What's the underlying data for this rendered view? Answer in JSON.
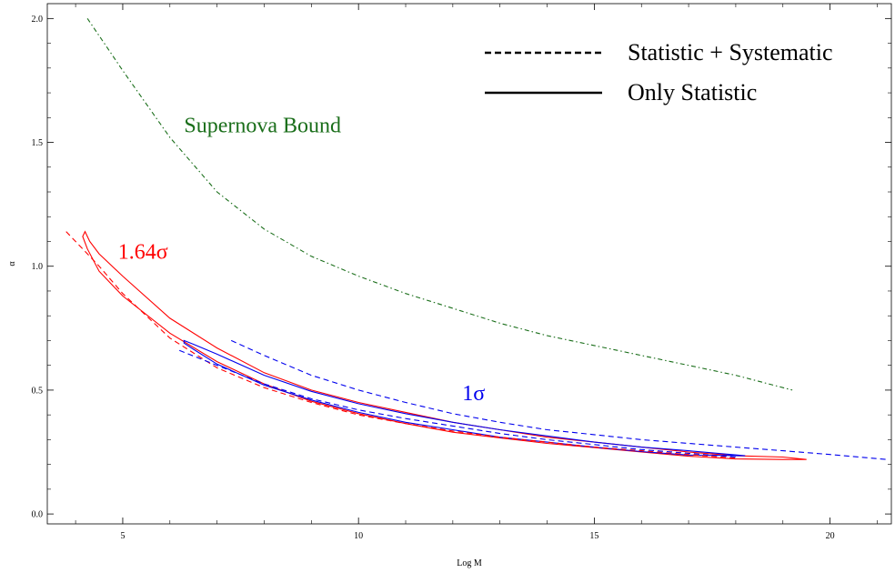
{
  "chart_data": {
    "type": "line",
    "xlabel": "Log M",
    "ylabel": "α",
    "xlim": [
      3.4,
      21.3
    ],
    "ylim": [
      -0.04,
      2.06
    ],
    "x_ticks": [
      5,
      10,
      15,
      20
    ],
    "x_tick_labels": [
      "5",
      "10",
      "15",
      "20"
    ],
    "y_ticks": [
      0.0,
      0.5,
      1.0,
      1.5,
      2.0
    ],
    "y_tick_labels": [
      "0.0",
      "0.5",
      "1.0",
      "1.5",
      "2.0"
    ],
    "grid": false,
    "legend": {
      "position": "top-right",
      "entries": [
        {
          "label": "Statistic + Systematic",
          "style": "dashed",
          "color": "#000000"
        },
        {
          "label": "Only Statistic",
          "style": "solid",
          "color": "#000000"
        }
      ]
    },
    "annotations": [
      {
        "text": "Supernova Bound",
        "x": 6.3,
        "y": 1.54,
        "color": "#1a6e1a"
      },
      {
        "text": "1.64σ",
        "x": 4.9,
        "y": 1.03,
        "color": "#ff0000"
      },
      {
        "text": "1σ",
        "x": 12.2,
        "y": 0.46,
        "color": "#0000ee"
      }
    ],
    "series": [
      {
        "style": "dashdot",
        "color": "#1a6e1a",
        "closed": false,
        "points": [
          [
            4.25,
            2.0
          ],
          [
            5.0,
            1.79
          ],
          [
            6.0,
            1.52
          ],
          [
            7.0,
            1.3
          ],
          [
            8.0,
            1.15
          ],
          [
            9.0,
            1.04
          ],
          [
            10.0,
            0.96
          ],
          [
            11.0,
            0.89
          ],
          [
            12.0,
            0.83
          ],
          [
            13.0,
            0.77
          ],
          [
            14.0,
            0.72
          ],
          [
            15.0,
            0.68
          ],
          [
            16.0,
            0.64
          ],
          [
            17.0,
            0.6
          ],
          [
            18.0,
            0.56
          ],
          [
            19.2,
            0.5
          ]
        ]
      },
      {
        "style": "solid",
        "color": "#ff0000",
        "closed": true,
        "points": [
          [
            4.2,
            1.14
          ],
          [
            4.3,
            1.1
          ],
          [
            4.5,
            1.05
          ],
          [
            5.0,
            0.96
          ],
          [
            6.0,
            0.79
          ],
          [
            7.0,
            0.67
          ],
          [
            8.0,
            0.57
          ],
          [
            9.0,
            0.5
          ],
          [
            10.0,
            0.45
          ],
          [
            11.0,
            0.41
          ],
          [
            12.0,
            0.37
          ],
          [
            13.0,
            0.34
          ],
          [
            14.0,
            0.31
          ],
          [
            15.0,
            0.29
          ],
          [
            16.0,
            0.27
          ],
          [
            17.0,
            0.25
          ],
          [
            18.0,
            0.235
          ],
          [
            19.0,
            0.23
          ],
          [
            19.5,
            0.22
          ],
          [
            19.0,
            0.22
          ],
          [
            18.0,
            0.222
          ],
          [
            17.0,
            0.233
          ],
          [
            16.0,
            0.25
          ],
          [
            15.0,
            0.268
          ],
          [
            14.0,
            0.285
          ],
          [
            13.0,
            0.307
          ],
          [
            12.0,
            0.33
          ],
          [
            11.0,
            0.365
          ],
          [
            10.0,
            0.405
          ],
          [
            9.0,
            0.455
          ],
          [
            8.0,
            0.525
          ],
          [
            7.0,
            0.615
          ],
          [
            6.0,
            0.73
          ],
          [
            5.0,
            0.88
          ],
          [
            4.5,
            0.98
          ],
          [
            4.25,
            1.07
          ],
          [
            4.15,
            1.12
          ]
        ]
      },
      {
        "style": "solid",
        "color": "#0000ee",
        "closed": true,
        "points": [
          [
            6.3,
            0.7
          ],
          [
            6.5,
            0.685
          ],
          [
            7.0,
            0.645
          ],
          [
            8.0,
            0.56
          ],
          [
            9.0,
            0.495
          ],
          [
            10.0,
            0.445
          ],
          [
            11.0,
            0.405
          ],
          [
            12.0,
            0.37
          ],
          [
            13.0,
            0.34
          ],
          [
            14.0,
            0.315
          ],
          [
            15.0,
            0.29
          ],
          [
            16.0,
            0.27
          ],
          [
            17.0,
            0.255
          ],
          [
            18.2,
            0.235
          ],
          [
            17.0,
            0.238
          ],
          [
            16.0,
            0.252
          ],
          [
            15.0,
            0.27
          ],
          [
            14.0,
            0.29
          ],
          [
            13.0,
            0.31
          ],
          [
            12.0,
            0.34
          ],
          [
            11.0,
            0.37
          ],
          [
            10.0,
            0.41
          ],
          [
            9.0,
            0.46
          ],
          [
            8.0,
            0.52
          ],
          [
            7.0,
            0.605
          ],
          [
            6.5,
            0.665
          ],
          [
            6.3,
            0.69
          ]
        ]
      },
      {
        "style": "dashed",
        "color": "#ff0000",
        "closed": false,
        "points": [
          [
            3.8,
            1.14
          ],
          [
            4.2,
            1.06
          ],
          [
            4.5,
            1.0
          ],
          [
            5.0,
            0.89
          ],
          [
            6.0,
            0.71
          ],
          [
            7.0,
            0.59
          ],
          [
            8.0,
            0.51
          ],
          [
            9.0,
            0.45
          ],
          [
            10.0,
            0.4
          ],
          [
            11.0,
            0.365
          ],
          [
            12.0,
            0.335
          ],
          [
            13.0,
            0.31
          ],
          [
            14.0,
            0.29
          ],
          [
            15.0,
            0.27
          ],
          [
            16.0,
            0.255
          ],
          [
            17.0,
            0.24
          ],
          [
            18.0,
            0.225
          ]
        ]
      },
      {
        "style": "dashed",
        "color": "#0000ee",
        "closed": false,
        "points": [
          [
            6.2,
            0.66
          ],
          [
            7.0,
            0.6
          ],
          [
            8.0,
            0.525
          ],
          [
            9.0,
            0.465
          ],
          [
            10.0,
            0.42
          ],
          [
            11.0,
            0.385
          ],
          [
            12.0,
            0.355
          ],
          [
            13.0,
            0.325
          ],
          [
            14.0,
            0.3
          ],
          [
            15.0,
            0.28
          ],
          [
            16.0,
            0.26
          ],
          [
            17.0,
            0.245
          ],
          [
            18.0,
            0.23
          ]
        ]
      },
      {
        "style": "dashed",
        "color": "#0000ee",
        "closed": false,
        "points": [
          [
            7.3,
            0.7
          ],
          [
            8.0,
            0.64
          ],
          [
            9.0,
            0.56
          ],
          [
            10.0,
            0.5
          ],
          [
            11.0,
            0.45
          ],
          [
            12.0,
            0.405
          ],
          [
            13.0,
            0.37
          ],
          [
            14.0,
            0.34
          ],
          [
            15.0,
            0.32
          ],
          [
            16.0,
            0.3
          ],
          [
            17.0,
            0.285
          ],
          [
            18.0,
            0.27
          ],
          [
            19.0,
            0.255
          ],
          [
            20.0,
            0.24
          ],
          [
            21.2,
            0.22
          ]
        ]
      }
    ]
  }
}
